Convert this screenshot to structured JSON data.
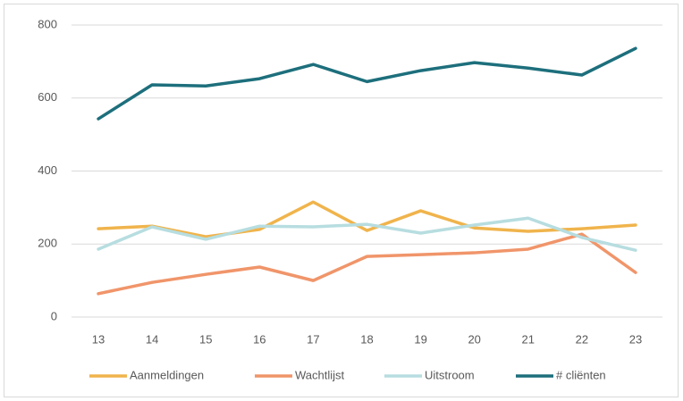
{
  "chart_data": {
    "type": "line",
    "categories": [
      "13",
      "14",
      "15",
      "16",
      "17",
      "18",
      "19",
      "20",
      "21",
      "22",
      "23"
    ],
    "series": [
      {
        "name": "Aanmeldingen",
        "color": "#f0b44c",
        "values": [
          242,
          249,
          220,
          240,
          315,
          237,
          291,
          244,
          235,
          242,
          252
        ]
      },
      {
        "name": "Wachtlijst",
        "color": "#f0956a",
        "values": [
          64,
          95,
          117,
          137,
          100,
          166,
          171,
          176,
          186,
          227,
          122
        ]
      },
      {
        "name": "Uitstroom",
        "color": "#b7dde0",
        "values": [
          186,
          247,
          213,
          249,
          247,
          254,
          230,
          252,
          271,
          218,
          183
        ]
      },
      {
        "name": "# cliënten",
        "color": "#1d6f7c",
        "values": [
          543,
          636,
          633,
          653,
          692,
          645,
          675,
          697,
          682,
          663,
          736
        ]
      }
    ],
    "ylim": [
      0,
      800
    ],
    "yticks": [
      0,
      200,
      400,
      600,
      800
    ],
    "grid": true,
    "legend": "bottom"
  }
}
